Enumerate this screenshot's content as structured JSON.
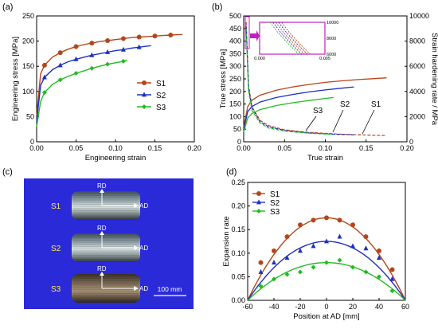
{
  "panels": {
    "a": {
      "letter": "(a)",
      "chart_data": {
        "type": "line",
        "xlabel": "Engineering strain",
        "ylabel": "Engineering stress [MPa]",
        "xlim": [
          0,
          0.2
        ],
        "ylim": [
          0,
          250
        ],
        "xticks": [
          "0.00",
          "0.05",
          "0.10",
          "0.15",
          "0.20"
        ],
        "yticks": [
          "0",
          "50",
          "100",
          "150",
          "200",
          "250"
        ],
        "legend": "center-right",
        "series": [
          {
            "name": "S1",
            "color": "#b5451b",
            "marker": "circle",
            "x": [
              0,
              0.005,
              0.01,
              0.02,
              0.03,
              0.04,
              0.05,
              0.06,
              0.07,
              0.08,
              0.09,
              0.1,
              0.11,
              0.12,
              0.13,
              0.14,
              0.15,
              0.16,
              0.17,
              0.18,
              0.185
            ],
            "y": [
              50,
              135,
              152,
              168,
              177,
              184,
              189,
              193,
              196,
              199,
              201,
              203,
              205,
              207,
              208,
              209,
              210,
              211,
              212,
              213,
              213
            ],
            "marker_x": [
              0.01,
              0.03,
              0.05,
              0.07,
              0.09,
              0.11,
              0.13,
              0.15,
              0.17
            ],
            "marker_y": [
              152,
              177,
              189,
              196,
              201,
              205,
              208,
              210,
              212
            ]
          },
          {
            "name": "S2",
            "color": "#1f2fbf",
            "marker": "triangle",
            "x": [
              0,
              0.005,
              0.01,
              0.02,
              0.03,
              0.04,
              0.05,
              0.06,
              0.07,
              0.08,
              0.09,
              0.1,
              0.11,
              0.12,
              0.13,
              0.14,
              0.145
            ],
            "y": [
              40,
              112,
              128,
              143,
              152,
              159,
              164,
              168,
              172,
              175,
              178,
              181,
              183,
              186,
              188,
              190,
              191
            ],
            "marker_x": [
              0.01,
              0.03,
              0.05,
              0.07,
              0.09,
              0.11,
              0.13
            ],
            "marker_y": [
              128,
              152,
              164,
              172,
              178,
              183,
              188
            ]
          },
          {
            "name": "S3",
            "color": "#22bb22",
            "marker": "diamond",
            "x": [
              0,
              0.005,
              0.01,
              0.02,
              0.03,
              0.04,
              0.05,
              0.06,
              0.07,
              0.08,
              0.09,
              0.1,
              0.11,
              0.115
            ],
            "y": [
              30,
              80,
              98,
              114,
              123,
              130,
              136,
              141,
              146,
              150,
              154,
              157,
              160,
              162
            ],
            "marker_x": [
              0.01,
              0.03,
              0.05,
              0.07,
              0.09,
              0.11
            ],
            "marker_y": [
              98,
              123,
              136,
              146,
              154,
              160
            ]
          }
        ]
      }
    },
    "b": {
      "letter": "(b)",
      "chart_data": {
        "type": "line",
        "xlabel": "True strain",
        "ylabel": "True stress [MPa]",
        "y2label": "Strain hardening rate / MPa",
        "xlim": [
          0,
          0.2
        ],
        "ylim": [
          0,
          500
        ],
        "y2lim": [
          0,
          10000
        ],
        "xticks": [
          "0.00",
          "0.05",
          "0.10",
          "0.15",
          "0.20"
        ],
        "yticks": [
          "0",
          "50",
          "100",
          "150",
          "200",
          "250",
          "300",
          "350",
          "400",
          "450",
          "500"
        ],
        "y2ticks": [
          "0",
          "2000",
          "4000",
          "6000",
          "8000",
          "10000"
        ],
        "annotations": [
          "S1",
          "S2",
          "S3"
        ],
        "series": [
          {
            "name": "S1",
            "color": "#b5451b",
            "x": [
              0,
              0.005,
              0.01,
              0.02,
              0.04,
              0.06,
              0.08,
              0.1,
              0.12,
              0.14,
              0.16,
              0.175
            ],
            "y": [
              60,
              140,
              165,
              185,
              205,
              218,
              228,
              236,
              242,
              247,
              251,
              254
            ],
            "rate_x": [
              0.003,
              0.006,
              0.01,
              0.02,
              0.03,
              0.05,
              0.08,
              0.12,
              0.16,
              0.175
            ],
            "rate_y": [
              9500,
              4500,
              2800,
              1700,
              1300,
              950,
              750,
              600,
              520,
              500
            ]
          },
          {
            "name": "S2",
            "color": "#1f2fbf",
            "x": [
              0,
              0.005,
              0.01,
              0.02,
              0.04,
              0.06,
              0.08,
              0.1,
              0.12,
              0.135
            ],
            "y": [
              50,
              120,
              140,
              158,
              176,
              188,
              198,
              206,
              213,
              218
            ],
            "rate_x": [
              0.003,
              0.006,
              0.01,
              0.02,
              0.03,
              0.05,
              0.08,
              0.11,
              0.135
            ],
            "rate_y": [
              9200,
              4300,
              2700,
              1600,
              1200,
              900,
              700,
              600,
              560
            ]
          },
          {
            "name": "S3",
            "color": "#22bb22",
            "x": [
              0,
              0.005,
              0.01,
              0.02,
              0.04,
              0.06,
              0.08,
              0.1,
              0.11
            ],
            "y": [
              40,
              95,
              112,
              128,
              144,
              155,
              164,
              172,
              176
            ],
            "rate_x": [
              0.003,
              0.006,
              0.01,
              0.02,
              0.03,
              0.05,
              0.08,
              0.1,
              0.11
            ],
            "rate_y": [
              9000,
              4000,
              2500,
              1500,
              1100,
              850,
              680,
              620,
              600
            ]
          }
        ],
        "inset": {
          "xlim": [
            0,
            0.005
          ],
          "ylim": [
            6000,
            10000
          ],
          "xticks": [
            "0.000",
            "0.005"
          ],
          "yticks": [
            "6000",
            "8000",
            "10000"
          ]
        }
      }
    },
    "c": {
      "letter": "(c)",
      "samples": [
        {
          "label": "S1",
          "rd": "RD",
          "ad": "AD"
        },
        {
          "label": "S2",
          "rd": "RD",
          "ad": "AD"
        },
        {
          "label": "S3",
          "rd": "RD",
          "ad": "AD"
        }
      ],
      "scale_bar": "100 mm",
      "background": "#2a2ad8"
    },
    "d": {
      "letter": "(d)",
      "chart_data": {
        "type": "scatter",
        "xlabel": "Position at AD [mm]",
        "ylabel": "Expansion rate",
        "xlim": [
          -60,
          60
        ],
        "ylim": [
          0,
          0.25
        ],
        "xticks": [
          "-60",
          "-40",
          "-20",
          "0",
          "20",
          "40",
          "60"
        ],
        "yticks": [
          "0.00",
          "0.05",
          "0.10",
          "0.15",
          "0.20",
          "0.25"
        ],
        "legend": "top-left",
        "series": [
          {
            "name": "S1",
            "color": "#b5451b",
            "marker": "circle",
            "x": [
              -50,
              -40,
              -30,
              -20,
              -10,
              0,
              10,
              20,
              30,
              40,
              50
            ],
            "y": [
              0.08,
              0.105,
              0.135,
              0.16,
              0.17,
              0.175,
              0.17,
              0.16,
              0.135,
              0.105,
              0.065
            ],
            "fit_peak": 0.175
          },
          {
            "name": "S2",
            "color": "#1f2fbf",
            "marker": "triangle",
            "x": [
              -50,
              -40,
              -30,
              -20,
              -10,
              0,
              10,
              20,
              30,
              40,
              50
            ],
            "y": [
              0.06,
              0.08,
              0.09,
              0.105,
              0.115,
              0.125,
              0.135,
              0.115,
              0.11,
              0.09,
              0.045
            ],
            "fit_peak": 0.125
          },
          {
            "name": "S3",
            "color": "#22bb22",
            "marker": "diamond",
            "x": [
              -50,
              -40,
              -30,
              -20,
              -10,
              0,
              10,
              20,
              30,
              40,
              50
            ],
            "y": [
              0.03,
              0.045,
              0.055,
              0.06,
              0.07,
              0.08,
              0.085,
              0.07,
              0.06,
              0.05,
              0.02
            ],
            "fit_peak": 0.08
          }
        ]
      }
    }
  }
}
